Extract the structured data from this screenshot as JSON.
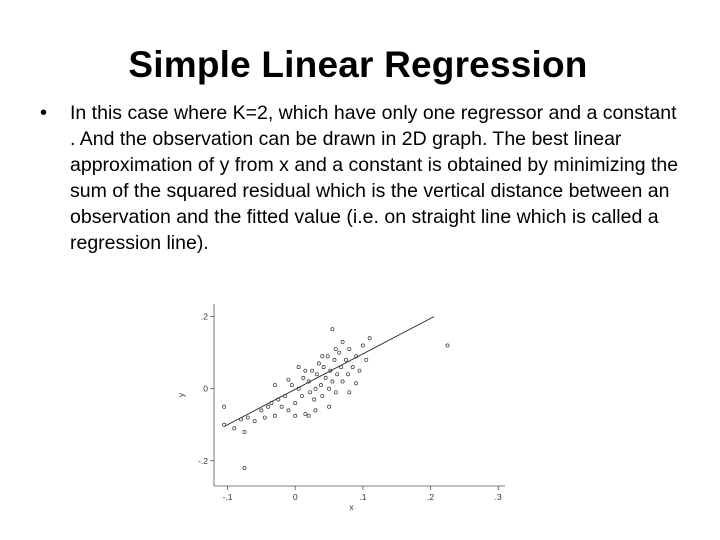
{
  "slide": {
    "title": "Simple Linear Regression",
    "bullet_symbol": "•",
    "bullet_text": "In this case where K=2, which have only one regressor and a constant . And the observation can be drawn in 2D graph. The best linear approximation of y from x and a constant is obtained by minimizing the sum of the squared residual which is the vertical distance between an observation and the fitted value (i.e. on straight line which is called a regression line)."
  },
  "chart_data": {
    "type": "scatter",
    "title": "",
    "xlabel": "x",
    "ylabel": "y",
    "xlim": [
      -0.12,
      0.31
    ],
    "ylim": [
      -0.27,
      0.235
    ],
    "x_ticks": [
      -0.1,
      0,
      0.1,
      0.2,
      0.3
    ],
    "x_tick_labels": [
      "-.1",
      "0",
      ".1",
      ".2",
      ".3"
    ],
    "y_ticks": [
      -0.2,
      0,
      0.2
    ],
    "y_tick_labels": [
      "-.2",
      "0",
      ".2"
    ],
    "grid": false,
    "regression_line": {
      "x": [
        -0.105,
        0.205
      ],
      "y": [
        -0.105,
        0.2
      ]
    },
    "points": [
      {
        "x": -0.105,
        "y": -0.1
      },
      {
        "x": -0.09,
        "y": -0.11
      },
      {
        "x": -0.08,
        "y": -0.085
      },
      {
        "x": -0.07,
        "y": -0.08
      },
      {
        "x": -0.075,
        "y": -0.12
      },
      {
        "x": -0.06,
        "y": -0.09
      },
      {
        "x": -0.05,
        "y": -0.06
      },
      {
        "x": -0.04,
        "y": -0.05
      },
      {
        "x": -0.045,
        "y": -0.08
      },
      {
        "x": -0.035,
        "y": -0.04
      },
      {
        "x": -0.03,
        "y": -0.075
      },
      {
        "x": -0.025,
        "y": -0.03
      },
      {
        "x": -0.02,
        "y": -0.05
      },
      {
        "x": -0.015,
        "y": -0.02
      },
      {
        "x": -0.01,
        "y": -0.06
      },
      {
        "x": -0.005,
        "y": 0.01
      },
      {
        "x": 0.0,
        "y": -0.04
      },
      {
        "x": 0.005,
        "y": 0.0
      },
      {
        "x": 0.01,
        "y": -0.02
      },
      {
        "x": 0.012,
        "y": 0.03
      },
      {
        "x": 0.015,
        "y": -0.07
      },
      {
        "x": 0.02,
        "y": 0.02
      },
      {
        "x": 0.022,
        "y": -0.01
      },
      {
        "x": 0.025,
        "y": 0.05
      },
      {
        "x": 0.028,
        "y": -0.03
      },
      {
        "x": 0.03,
        "y": 0.0
      },
      {
        "x": 0.032,
        "y": 0.04
      },
      {
        "x": 0.035,
        "y": 0.07
      },
      {
        "x": 0.038,
        "y": 0.01
      },
      {
        "x": 0.04,
        "y": -0.02
      },
      {
        "x": 0.042,
        "y": 0.06
      },
      {
        "x": 0.045,
        "y": 0.03
      },
      {
        "x": 0.048,
        "y": 0.09
      },
      {
        "x": 0.05,
        "y": 0.0
      },
      {
        "x": 0.052,
        "y": 0.05
      },
      {
        "x": 0.055,
        "y": 0.02
      },
      {
        "x": 0.058,
        "y": 0.08
      },
      {
        "x": 0.06,
        "y": -0.01
      },
      {
        "x": 0.062,
        "y": 0.04
      },
      {
        "x": 0.065,
        "y": 0.1
      },
      {
        "x": 0.068,
        "y": 0.06
      },
      {
        "x": 0.07,
        "y": 0.02
      },
      {
        "x": 0.075,
        "y": 0.08
      },
      {
        "x": 0.078,
        "y": 0.04
      },
      {
        "x": 0.08,
        "y": 0.11
      },
      {
        "x": 0.085,
        "y": 0.06
      },
      {
        "x": 0.09,
        "y": 0.09
      },
      {
        "x": 0.095,
        "y": 0.05
      },
      {
        "x": 0.1,
        "y": 0.12
      },
      {
        "x": 0.105,
        "y": 0.08
      },
      {
        "x": 0.005,
        "y": 0.06
      },
      {
        "x": 0.015,
        "y": 0.05
      },
      {
        "x": -0.01,
        "y": 0.025
      },
      {
        "x": 0.0,
        "y": -0.075
      },
      {
        "x": 0.03,
        "y": -0.06
      },
      {
        "x": 0.05,
        "y": -0.05
      },
      {
        "x": 0.07,
        "y": 0.13
      },
      {
        "x": 0.06,
        "y": 0.11
      },
      {
        "x": 0.04,
        "y": 0.09
      },
      {
        "x": 0.08,
        "y": -0.01
      },
      {
        "x": 0.02,
        "y": -0.075
      },
      {
        "x": -0.03,
        "y": 0.01
      },
      {
        "x": 0.09,
        "y": 0.015
      },
      {
        "x": 0.055,
        "y": 0.165
      },
      {
        "x": 0.225,
        "y": 0.12
      },
      {
        "x": -0.075,
        "y": -0.22
      },
      {
        "x": -0.105,
        "y": -0.05
      },
      {
        "x": 0.11,
        "y": 0.14
      }
    ]
  }
}
